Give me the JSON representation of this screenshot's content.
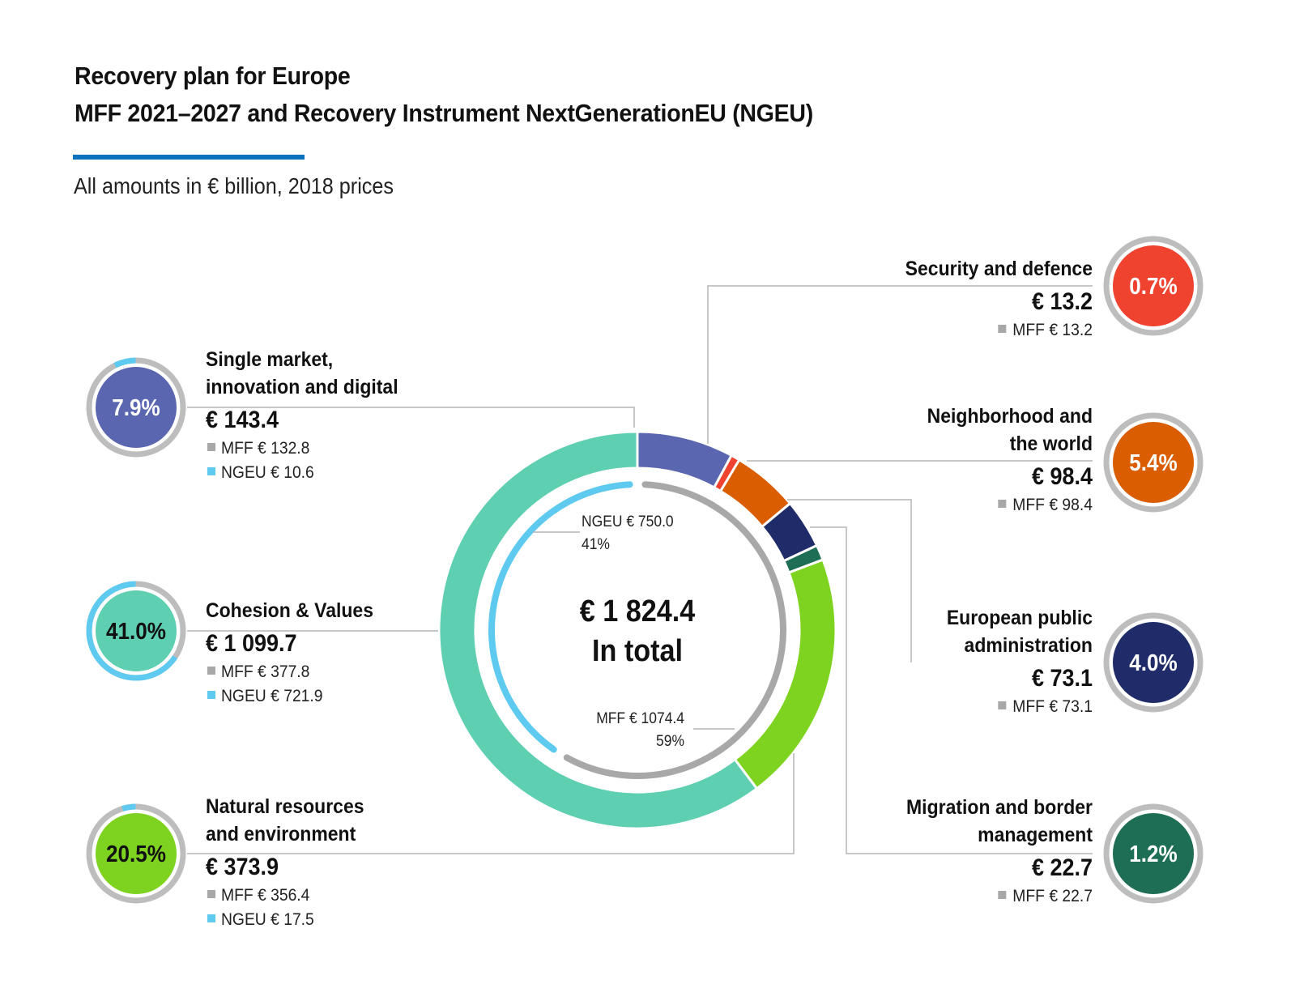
{
  "header": {
    "title_line1": "Recovery plan for Europe",
    "title_line2": "MFF 2021–2027 and Recovery Instrument NextGenerationEU (NGEU)",
    "subtitle": "All amounts in € billion, 2018 prices"
  },
  "colors": {
    "accent": "#0b72c0",
    "mff_gray": "#a8a8a8",
    "ngeu_blue": "#5fcaf0",
    "ring_gray": "#bdbdbd"
  },
  "chart_data": {
    "type": "donut",
    "center": {
      "total": "€ 1 824.4",
      "label": "In total"
    },
    "inner_ring": [
      {
        "name": "NGEU",
        "label": "NGEU € 750.0",
        "pct_label": "41%",
        "value": 750.0,
        "color": "#5fcaf0"
      },
      {
        "name": "MFF",
        "label": "MFF € 1074.4",
        "pct_label": "59%",
        "value": 1074.4,
        "color": "#a8a8a8"
      }
    ],
    "categories": [
      {
        "id": "single-market",
        "title": [
          "Single market,",
          "innovation and digital"
        ],
        "pct": "7.9%",
        "total": "€ 143.4",
        "value": 143.4,
        "mff": 132.8,
        "ngeu": 10.6,
        "mff_label": "MFF € 132.8",
        "ngeu_label": "NGEU € 10.6",
        "color": "#5b66b1",
        "side": "left"
      },
      {
        "id": "security-defence",
        "title": [
          "Security and defence"
        ],
        "pct": "0.7%",
        "total": "€ 13.2",
        "value": 13.2,
        "mff": 13.2,
        "ngeu": 0,
        "mff_label": "MFF € 13.2",
        "color": "#ef4330",
        "side": "right"
      },
      {
        "id": "neighborhood-world",
        "title": [
          "Neighborhood and",
          "the world"
        ],
        "pct": "5.4%",
        "total": "€ 98.4",
        "value": 98.4,
        "mff": 98.4,
        "ngeu": 0,
        "mff_label": "MFF € 98.4",
        "color": "#da5d00",
        "side": "right"
      },
      {
        "id": "public-administration",
        "title": [
          "European public",
          "administration"
        ],
        "pct": "4.0%",
        "total": "€ 73.1",
        "value": 73.1,
        "mff": 73.1,
        "ngeu": 0,
        "mff_label": "MFF € 73.1",
        "color": "#1f2c69",
        "side": "right"
      },
      {
        "id": "migration-border",
        "title": [
          "Migration and border",
          "management"
        ],
        "pct": "1.2%",
        "total": "€ 22.7",
        "value": 22.7,
        "mff": 22.7,
        "ngeu": 0,
        "mff_label": "MFF € 22.7",
        "color": "#1e6e55",
        "side": "right"
      },
      {
        "id": "natural-resources",
        "title": [
          "Natural resources",
          "and environment"
        ],
        "pct": "20.5%",
        "total": "€ 373.9",
        "value": 373.9,
        "mff": 356.4,
        "ngeu": 17.5,
        "mff_label": "MFF € 356.4",
        "ngeu_label": "NGEU € 17.5",
        "color": "#7ed321",
        "side": "left"
      },
      {
        "id": "cohesion-values",
        "title": [
          "Cohesion & Values"
        ],
        "pct": "41.0%",
        "total": "€ 1 099.7",
        "value": 1099.7,
        "mff": 377.8,
        "ngeu": 721.9,
        "mff_label": "MFF € 377.8",
        "ngeu_label": "NGEU € 721.9",
        "color": "#5ecfb1",
        "side": "left"
      }
    ]
  }
}
